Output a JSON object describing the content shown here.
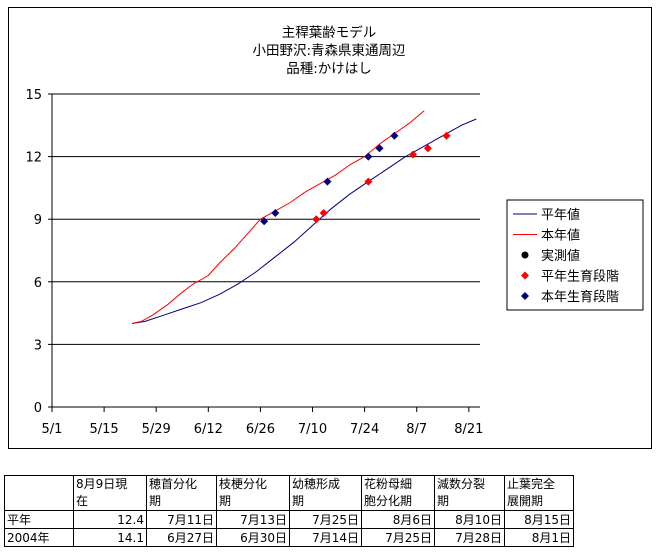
{
  "chart_data": {
    "type": "line",
    "title_lines": [
      "主稈葉齢モデル",
      "小田野沢:青森県東通周辺",
      "品種:かけはし"
    ],
    "xlabel": "",
    "ylabel": "",
    "x_tick_labels": [
      "5/1",
      "5/15",
      "5/29",
      "6/12",
      "6/26",
      "7/10",
      "7/24",
      "8/7",
      "8/21"
    ],
    "x_tick_days": [
      0,
      14,
      28,
      42,
      56,
      70,
      84,
      98,
      112
    ],
    "xlim_days": [
      0,
      115
    ],
    "ylim": [
      0,
      15
    ],
    "y_ticks": [
      0,
      3,
      6,
      9,
      12,
      15
    ],
    "grid": "horizontal",
    "legend_position": "right",
    "series": [
      {
        "name": "平年値",
        "kind": "line",
        "color": "#000080",
        "points": [
          [
            21.5,
            4.0
          ],
          [
            25,
            4.1
          ],
          [
            30,
            4.4
          ],
          [
            35,
            4.7
          ],
          [
            40,
            5.0
          ],
          [
            45,
            5.4
          ],
          [
            50,
            5.9
          ],
          [
            55,
            6.5
          ],
          [
            60,
            7.2
          ],
          [
            65,
            7.9
          ],
          [
            70,
            8.7
          ],
          [
            75,
            9.5
          ],
          [
            80,
            10.2
          ],
          [
            85,
            10.8
          ],
          [
            90,
            11.4
          ],
          [
            95,
            12.0
          ],
          [
            100,
            12.5
          ],
          [
            105,
            13.0
          ],
          [
            110,
            13.5
          ],
          [
            114,
            13.8
          ]
        ]
      },
      {
        "name": "本年値",
        "kind": "line",
        "color": "#ff0000",
        "points": [
          [
            21.5,
            4.0
          ],
          [
            24,
            4.1
          ],
          [
            27,
            4.4
          ],
          [
            31,
            4.9
          ],
          [
            35,
            5.5
          ],
          [
            38,
            5.9
          ],
          [
            42,
            6.3
          ],
          [
            45,
            6.9
          ],
          [
            49,
            7.6
          ],
          [
            53,
            8.4
          ],
          [
            56,
            9.0
          ],
          [
            60,
            9.4
          ],
          [
            64,
            9.8
          ],
          [
            68,
            10.3
          ],
          [
            72,
            10.7
          ],
          [
            76,
            11.1
          ],
          [
            80,
            11.6
          ],
          [
            84,
            12.0
          ],
          [
            88,
            12.6
          ],
          [
            92,
            13.1
          ],
          [
            96,
            13.6
          ],
          [
            100,
            14.2
          ]
        ]
      },
      {
        "name": "実測値",
        "kind": "marker",
        "marker": "circle",
        "color": "#000000",
        "points": []
      },
      {
        "name": "平年生育段階",
        "kind": "marker",
        "marker": "diamond",
        "color": "#ff0000",
        "points": [
          [
            71,
            9.0
          ],
          [
            73,
            9.3
          ],
          [
            85,
            10.8
          ],
          [
            97,
            12.1
          ],
          [
            101,
            12.4
          ],
          [
            106,
            13.0
          ]
        ]
      },
      {
        "name": "本年生育段階",
        "kind": "marker",
        "marker": "diamond",
        "color": "#000080",
        "points": [
          [
            57,
            8.9
          ],
          [
            60,
            9.3
          ],
          [
            74,
            10.8
          ],
          [
            85,
            12.0
          ],
          [
            88,
            12.4
          ],
          [
            92,
            13.0
          ]
        ]
      }
    ]
  },
  "table": {
    "headers": [
      [
        "",
        ""
      ],
      [
        "8月9日現",
        "在"
      ],
      [
        "穂首分化",
        "期"
      ],
      [
        "枝梗分化",
        "期"
      ],
      [
        "幼穂形成",
        "期"
      ],
      [
        "花粉母細",
        "胞分化期"
      ],
      [
        "減数分裂",
        "期"
      ],
      [
        "止葉完全",
        "展開期"
      ]
    ],
    "rows": [
      [
        "平年",
        "12.4",
        "7月11日",
        "7月13日",
        "7月25日",
        "8月6日",
        "8月10日",
        "8月15日"
      ],
      [
        "2004年",
        "14.1",
        "6月27日",
        "6月30日",
        "7月14日",
        "7月25日",
        "7月28日",
        "8月1日"
      ]
    ]
  }
}
